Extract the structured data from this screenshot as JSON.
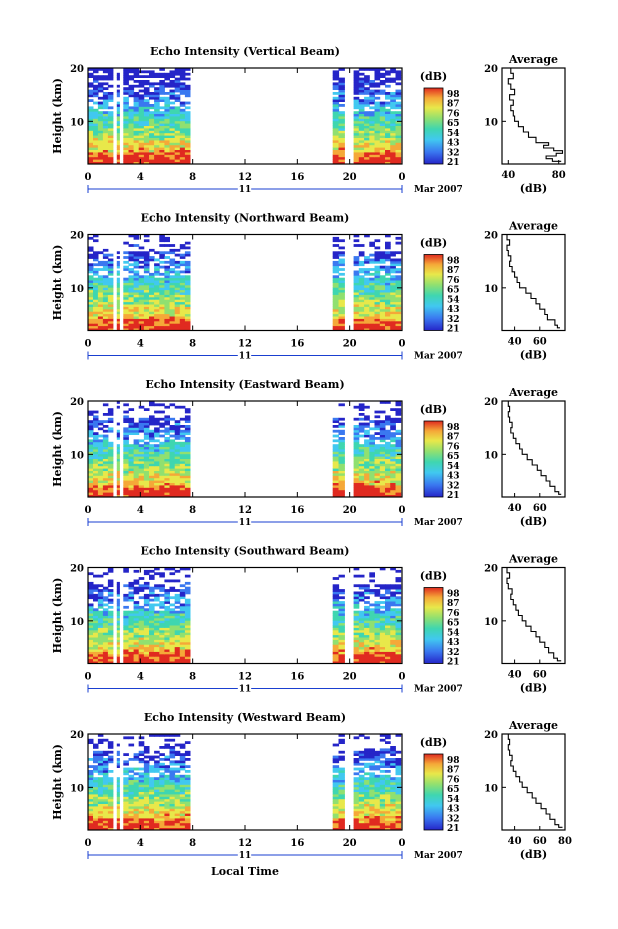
{
  "chart_data": [
    {
      "type": "heatmap",
      "title": "Echo Intensity (Vertical Beam)",
      "ylabel": "Height (km)",
      "ylim": [
        2,
        20
      ],
      "yticks": [
        20,
        10
      ],
      "xlim": [
        0,
        24
      ],
      "xticks": [
        "0",
        "4",
        "8",
        "12",
        "16",
        "20",
        "0"
      ],
      "date_day": "11",
      "date_month": "Mar 2007",
      "colorbar_unit": "(dB)",
      "colorbar_ticks": [
        "98",
        "87",
        "76",
        "65",
        "54",
        "43",
        "32",
        "21"
      ],
      "data_segments_hours": [
        [
          0,
          1.9
        ],
        [
          2.2,
          2.4
        ],
        [
          2.7,
          7.8
        ],
        [
          18.7,
          19.6
        ],
        [
          20.3,
          23.9
        ]
      ],
      "avg_title": "Average",
      "avg_xlabel": "(dB)",
      "avg_xlim": [
        35,
        85
      ],
      "avg_xticks": [
        "40",
        "80"
      ],
      "avg_yticks": [
        "20",
        "10"
      ],
      "avg_profile": {
        "height": [
          2.5,
          3,
          3.5,
          4,
          4.5,
          5,
          5.5,
          6,
          7,
          8,
          9,
          10,
          11,
          12,
          13,
          14,
          15,
          16,
          17,
          18,
          19,
          20
        ],
        "db": [
          82,
          75,
          70,
          78,
          83,
          76,
          68,
          72,
          62,
          56,
          52,
          48,
          45,
          44,
          42,
          44,
          41,
          45,
          42,
          40,
          44,
          42
        ]
      }
    },
    {
      "type": "heatmap",
      "title": "Echo Intensity (Northward Beam)",
      "ylabel": "Height (km)",
      "ylim": [
        2,
        20
      ],
      "yticks": [
        20,
        10
      ],
      "xlim": [
        0,
        24
      ],
      "xticks": [
        "0",
        "4",
        "8",
        "12",
        "16",
        "20",
        "0"
      ],
      "date_day": "11",
      "date_month": "Mar 2007",
      "colorbar_unit": "(dB)",
      "colorbar_ticks": [
        "98",
        "87",
        "76",
        "65",
        "54",
        "43",
        "32",
        "21"
      ],
      "data_segments_hours": [
        [
          0,
          1.9
        ],
        [
          2.2,
          2.4
        ],
        [
          2.7,
          7.8
        ],
        [
          18.7,
          19.6
        ],
        [
          20.3,
          23.9
        ]
      ],
      "avg_title": "Average",
      "avg_xlabel": "(dB)",
      "avg_xlim": [
        30,
        80
      ],
      "avg_xticks": [
        "40",
        "60"
      ],
      "avg_yticks": [
        "20",
        "10"
      ],
      "avg_profile": {
        "height": [
          2.5,
          3,
          4,
          5,
          6,
          7,
          8,
          9,
          10,
          11,
          12,
          13,
          14,
          15,
          16,
          17,
          18,
          19,
          20
        ],
        "db": [
          76,
          74,
          72,
          66,
          64,
          60,
          57,
          53,
          49,
          44,
          42,
          40,
          38,
          36,
          37,
          35,
          34,
          36,
          34
        ]
      }
    },
    {
      "type": "heatmap",
      "title": "Echo Intensity (Eastward Beam)",
      "ylabel": "Height (km)",
      "ylim": [
        2,
        20
      ],
      "yticks": [
        20,
        10
      ],
      "xlim": [
        0,
        24
      ],
      "xticks": [
        "0",
        "4",
        "8",
        "12",
        "16",
        "20",
        "0"
      ],
      "date_day": "11",
      "date_month": "Mar 2007",
      "colorbar_unit": "(dB)",
      "colorbar_ticks": [
        "98",
        "87",
        "76",
        "65",
        "54",
        "43",
        "32",
        "21"
      ],
      "data_segments_hours": [
        [
          0,
          1.9
        ],
        [
          2.2,
          2.4
        ],
        [
          2.7,
          7.8
        ],
        [
          18.7,
          19.6
        ],
        [
          20.3,
          23.9
        ]
      ],
      "avg_title": "Average",
      "avg_xlabel": "(dB)",
      "avg_xlim": [
        30,
        80
      ],
      "avg_xticks": [
        "40",
        "60"
      ],
      "avg_yticks": [
        "20",
        "10"
      ],
      "avg_profile": {
        "height": [
          2.5,
          3,
          4,
          5,
          6,
          7,
          8,
          9,
          10,
          11,
          12,
          13,
          14,
          15,
          16,
          17,
          18,
          19,
          20
        ],
        "db": [
          77,
          75,
          72,
          68,
          65,
          61,
          58,
          54,
          50,
          46,
          44,
          41,
          39,
          37,
          38,
          36,
          35,
          36,
          35
        ]
      }
    },
    {
      "type": "heatmap",
      "title": "Echo Intensity (Southward Beam)",
      "ylabel": "Height (km)",
      "ylim": [
        2,
        20
      ],
      "yticks": [
        20,
        10
      ],
      "xlim": [
        0,
        24
      ],
      "xticks": [
        "0",
        "4",
        "8",
        "12",
        "16",
        "20",
        "0"
      ],
      "date_day": "11",
      "date_month": "Mar 2007",
      "colorbar_unit": "(dB)",
      "colorbar_ticks": [
        "98",
        "87",
        "76",
        "65",
        "54",
        "43",
        "32",
        "21"
      ],
      "data_segments_hours": [
        [
          0,
          1.9
        ],
        [
          2.2,
          2.4
        ],
        [
          2.7,
          7.8
        ],
        [
          18.7,
          19.6
        ],
        [
          20.3,
          23.9
        ]
      ],
      "avg_title": "Average",
      "avg_xlabel": "(dB)",
      "avg_xlim": [
        30,
        80
      ],
      "avg_xticks": [
        "40",
        "60"
      ],
      "avg_yticks": [
        "20",
        "10"
      ],
      "avg_profile": {
        "height": [
          2.5,
          3,
          4,
          5,
          6,
          7,
          8,
          9,
          10,
          11,
          12,
          13,
          14,
          15,
          16,
          17,
          18,
          19,
          20
        ],
        "db": [
          77,
          74,
          71,
          67,
          64,
          60,
          57,
          53,
          49,
          46,
          43,
          41,
          39,
          37,
          38,
          35,
          34,
          36,
          34
        ]
      }
    },
    {
      "type": "heatmap",
      "title": "Echo Intensity (Westward Beam)",
      "ylabel": "Height (km)",
      "ylim": [
        2,
        20
      ],
      "yticks": [
        20,
        10
      ],
      "xlim": [
        0,
        24
      ],
      "xticks": [
        "0",
        "4",
        "8",
        "12",
        "16",
        "20",
        "0"
      ],
      "date_day": "11",
      "date_month": "Mar 2007",
      "xlabel": "Local Time",
      "colorbar_unit": "(dB)",
      "colorbar_ticks": [
        "98",
        "87",
        "76",
        "65",
        "54",
        "43",
        "32",
        "21"
      ],
      "data_segments_hours": [
        [
          0,
          1.9
        ],
        [
          2.2,
          2.4
        ],
        [
          2.7,
          7.8
        ],
        [
          18.7,
          19.6
        ],
        [
          20.3,
          23.9
        ]
      ],
      "avg_title": "Average",
      "avg_xlabel": "(dB)",
      "avg_xlim": [
        30,
        80
      ],
      "avg_xticks": [
        "40",
        "60",
        "80"
      ],
      "avg_yticks": [
        "20",
        "10"
      ],
      "avg_profile": {
        "height": [
          2.5,
          3,
          4,
          5,
          6,
          7,
          8,
          9,
          10,
          11,
          12,
          13,
          14,
          15,
          16,
          17,
          18,
          19,
          20
        ],
        "db": [
          78,
          75,
          72,
          68,
          65,
          61,
          57,
          54,
          50,
          46,
          44,
          41,
          39,
          37,
          38,
          36,
          35,
          36,
          35
        ]
      }
    }
  ],
  "colors": {
    "scale": [
      "#2b2bd9",
      "#3a78f0",
      "#41c8f0",
      "#3fd6b0",
      "#7fe080",
      "#e8e84a",
      "#f5a838",
      "#e83a2a"
    ]
  }
}
